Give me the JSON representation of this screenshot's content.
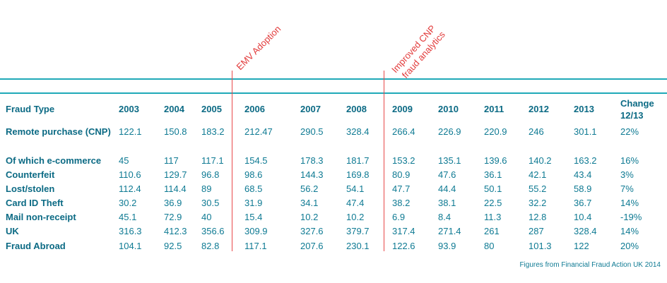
{
  "annotations": [
    "EMV Adoption",
    "Improved CNP",
    "fraud analytics"
  ],
  "table": {
    "columns": [
      "Fraud Type",
      "2003",
      "2004",
      "2005",
      "2006",
      "2007",
      "2008",
      "2009",
      "2010",
      "2011",
      "2012",
      "2013",
      "Change 12/13"
    ],
    "rows": [
      {
        "label": "Remote purchase (CNP)",
        "values": [
          "122.1",
          "150.8",
          "183.2",
          "212.47",
          "290.5",
          "328.4",
          "266.4",
          "226.9",
          "220.9",
          "246",
          "301.1",
          "22%"
        ]
      },
      {
        "label": "Of which e-commerce",
        "values": [
          "45",
          "117",
          "117.1",
          "154.5",
          "178.3",
          "181.7",
          "153.2",
          "135.1",
          "139.6",
          "140.2",
          "163.2",
          "16%"
        ]
      },
      {
        "label": "Counterfeit",
        "values": [
          "110.6",
          "129.7",
          "96.8",
          "98.6",
          "144.3",
          "169.8",
          "80.9",
          "47.6",
          "36.1",
          "42.1",
          "43.4",
          "3%"
        ]
      },
      {
        "label": "Lost/stolen",
        "values": [
          "112.4",
          "114.4",
          "89",
          "68.5",
          "56.2",
          "54.1",
          "47.7",
          "44.4",
          "50.1",
          "55.2",
          "58.9",
          "7%"
        ]
      },
      {
        "label": "Card ID Theft",
        "values": [
          "30.2",
          "36.9",
          "30.5",
          "31.9",
          "34.1",
          "47.4",
          "38.2",
          "38.1",
          "22.5",
          "32.2",
          "36.7",
          "14%"
        ]
      },
      {
        "label": "Mail non-receipt",
        "values": [
          "45.1",
          "72.9",
          "40",
          "15.4",
          "10.2",
          "10.2",
          "6.9",
          "8.4",
          "11.3",
          "12.8",
          "10.4",
          "-19%"
        ]
      },
      {
        "label": "UK",
        "values": [
          "316.3",
          "412.3",
          "356.6",
          "309.9",
          "327.6",
          "379.7",
          "317.4",
          "271.4",
          "261",
          "287",
          "328.4",
          "14%"
        ]
      },
      {
        "label": "Fraud Abroad",
        "values": [
          "104.1",
          "92.5",
          "82.8",
          "117.1",
          "207.6",
          "230.1",
          "122.6",
          "93.9",
          "80",
          "101.3",
          "122",
          "20%"
        ]
      }
    ]
  },
  "footer": "Figures from Financial Fraud Action UK 2014"
}
